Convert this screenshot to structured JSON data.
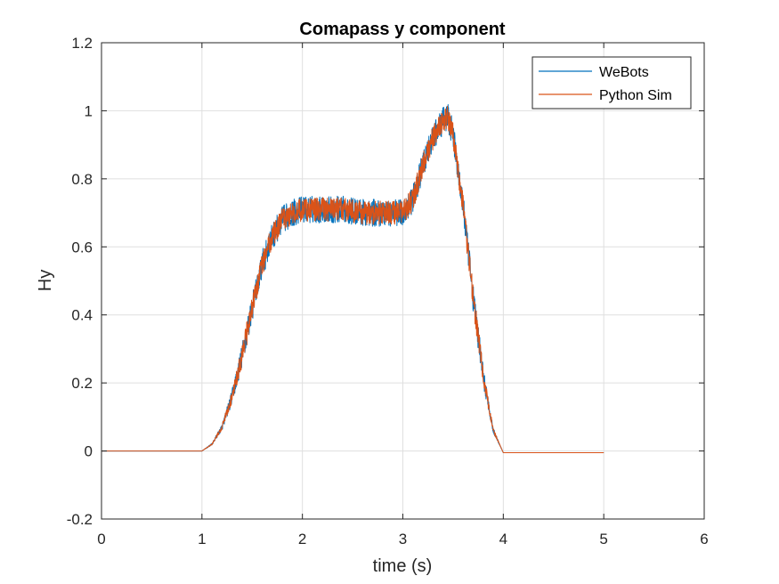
{
  "chart_data": {
    "type": "line",
    "title": "Comapass y component",
    "xlabel": "time (s)",
    "ylabel": "Hy",
    "xlim": [
      0,
      6
    ],
    "ylim": [
      -0.2,
      1.2
    ],
    "xticks": [
      "0",
      "1",
      "2",
      "3",
      "4",
      "5",
      "6"
    ],
    "yticks": [
      "-0.2",
      "0",
      "0.2",
      "0.4",
      "0.6",
      "0.8",
      "1",
      "1.2"
    ],
    "grid": true,
    "legend_position": "top-right",
    "series": [
      {
        "name": "WeBots",
        "color": "#0072BD",
        "noise_amplitude": 0.04,
        "x": [
          0,
          1.0,
          1.1,
          1.2,
          1.3,
          1.4,
          1.5,
          1.6,
          1.7,
          1.8,
          1.9,
          2.0,
          2.2,
          2.4,
          2.6,
          2.8,
          3.0,
          3.1,
          3.2,
          3.3,
          3.4,
          3.45,
          3.5,
          3.6,
          3.7,
          3.8,
          3.9,
          4.0,
          4.5,
          5.0
        ],
        "y": [
          0,
          0,
          0.02,
          0.07,
          0.16,
          0.28,
          0.42,
          0.55,
          0.63,
          0.68,
          0.7,
          0.71,
          0.71,
          0.71,
          0.7,
          0.7,
          0.7,
          0.74,
          0.84,
          0.92,
          0.97,
          0.98,
          0.93,
          0.72,
          0.45,
          0.22,
          0.06,
          -0.005,
          -0.005,
          -0.005
        ]
      },
      {
        "name": "Python Sim",
        "color": "#D95319",
        "noise_amplitude": 0.035,
        "x": [
          0,
          1.0,
          1.1,
          1.2,
          1.3,
          1.4,
          1.5,
          1.6,
          1.7,
          1.8,
          1.9,
          2.0,
          2.2,
          2.4,
          2.6,
          2.8,
          3.0,
          3.1,
          3.2,
          3.3,
          3.4,
          3.45,
          3.5,
          3.6,
          3.7,
          3.8,
          3.9,
          4.0,
          4.5,
          5.0
        ],
        "y": [
          0,
          0,
          0.02,
          0.07,
          0.16,
          0.28,
          0.42,
          0.55,
          0.63,
          0.68,
          0.7,
          0.71,
          0.71,
          0.71,
          0.7,
          0.7,
          0.7,
          0.74,
          0.84,
          0.92,
          0.97,
          0.98,
          0.93,
          0.72,
          0.45,
          0.22,
          0.06,
          -0.005,
          -0.005,
          -0.005
        ]
      }
    ]
  }
}
